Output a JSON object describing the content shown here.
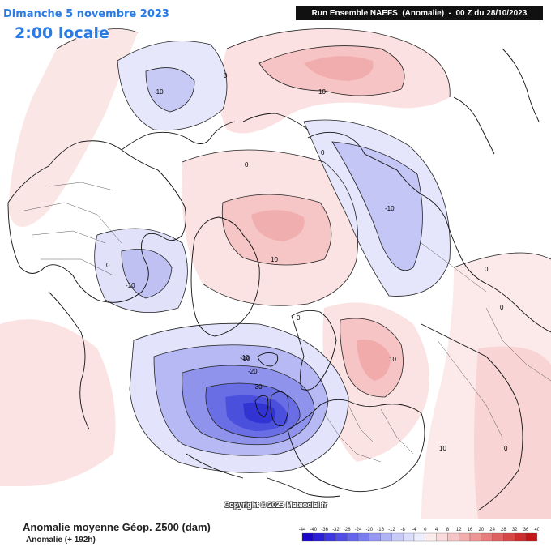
{
  "header": {
    "date": "Dimanche 5 novembre 2023",
    "time": "2:00 locale",
    "run": "Run Ensemble NAEFS  (Anomalie)  -  00 Z du 28/10/2023"
  },
  "footer": {
    "title": "Anomalie moyenne Géop. Z500 (dam)",
    "subtitle": "Anomalie (+ 192h)",
    "copyright": "Copyright © 2023 Meteociel.fr"
  },
  "legend": {
    "labels": [
      "-44",
      "-40",
      "-36",
      "-32",
      "-28",
      "-24",
      "-20",
      "-16",
      "-12",
      "-8",
      "-4",
      "0",
      "4",
      "8",
      "12",
      "16",
      "20",
      "24",
      "28",
      "32",
      "36",
      "40"
    ],
    "colors": [
      "#1a06c9",
      "#2b1fd6",
      "#3d36e0",
      "#4f4de6",
      "#6466ec",
      "#7a7ef0",
      "#9597f3",
      "#b0b2f6",
      "#c8caf8",
      "#dcddfb",
      "#ecedfd",
      "#fcecec",
      "#fadada",
      "#f7c5c5",
      "#f3adad",
      "#ee9696",
      "#e77d7d",
      "#df6262",
      "#d64848",
      "#cc2e2e",
      "#c21515"
    ]
  },
  "contour_labels": [
    "-10",
    "0",
    "10",
    "0",
    "-10",
    "0",
    "10",
    "-10",
    "0",
    "10",
    "-10",
    "0",
    "0",
    "0",
    "10",
    "0",
    "-10",
    "-20",
    "-30"
  ]
}
